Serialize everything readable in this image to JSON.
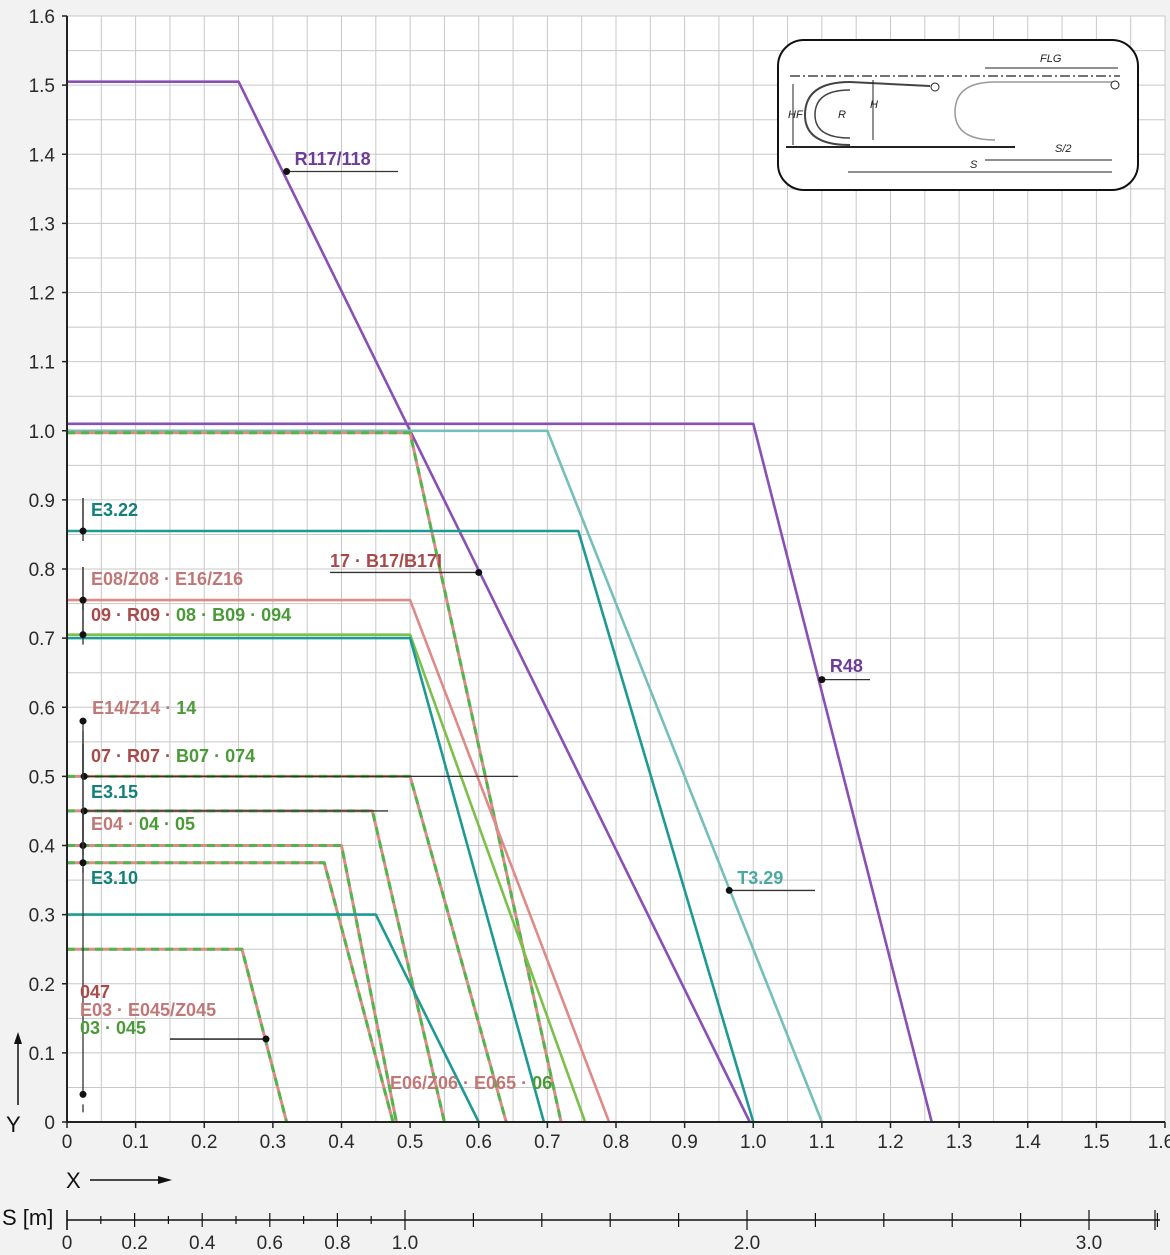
{
  "chart_data": {
    "type": "line",
    "title": "",
    "xlabel": "X",
    "ylabel": "Y",
    "xlim": [
      0,
      1.6
    ],
    "ylim": [
      0,
      1.6
    ],
    "grid": true,
    "x_ticks": [
      "0",
      "0.1",
      "0.2",
      "0.3",
      "0.4",
      "0.5",
      "0.6",
      "0.7",
      "0.8",
      "0.9",
      "1.0",
      "1.1",
      "1.2",
      "1.3",
      "1.4",
      "1.5",
      "1.6"
    ],
    "y_ticks": [
      "0",
      "0.1",
      "0.2",
      "0.3",
      "0.4",
      "0.5",
      "0.6",
      "0.7",
      "0.8",
      "0.9",
      "1.0",
      "1.1",
      "1.2",
      "1.3",
      "1.4",
      "1.5",
      "1.6"
    ],
    "secondary_axis": {
      "label": "S [m]",
      "ticks": [
        "0",
        "0.2",
        "0.4",
        "0.6",
        "0.8",
        "1.0",
        "2.0",
        "3.0"
      ]
    },
    "series": [
      {
        "name": "R117/118",
        "color": "#8a4fb4",
        "style": "solid",
        "points": [
          [
            0,
            1.505
          ],
          [
            0.25,
            1.505
          ],
          [
            0.995,
            0
          ]
        ]
      },
      {
        "name": "R48",
        "color": "#8a4fb4",
        "style": "solid",
        "points": [
          [
            0,
            1.01
          ],
          [
            1.0,
            1.01
          ],
          [
            1.26,
            0
          ]
        ]
      },
      {
        "name": "T3.29",
        "color": "#74c0b9",
        "style": "solid",
        "points": [
          [
            0,
            1.0
          ],
          [
            0.7,
            1.0
          ],
          [
            1.1,
            0
          ]
        ]
      },
      {
        "name": "17 · B17/B17I",
        "color": "#de8a88",
        "color2": "#52b54c",
        "style": "dashed",
        "points": [
          [
            0,
            0.997
          ],
          [
            0.5,
            0.997
          ],
          [
            0.72,
            0
          ]
        ]
      },
      {
        "name": "E3.22",
        "color": "#1e9a93",
        "style": "solid",
        "points": [
          [
            0,
            0.855
          ],
          [
            0.745,
            0.855
          ],
          [
            1.0,
            0
          ]
        ]
      },
      {
        "name": "E08/Z08 · E16/Z16",
        "color": "#de8a88",
        "style": "solid",
        "points": [
          [
            0,
            0.755
          ],
          [
            0.5,
            0.755
          ],
          [
            0.79,
            0
          ]
        ]
      },
      {
        "name": "09 · R09 · 08 · B09 · 094",
        "color": "#7cbf4a",
        "style": "solid",
        "points": [
          [
            0,
            0.705
          ],
          [
            0.5,
            0.705
          ],
          [
            0.755,
            0
          ]
        ]
      },
      {
        "name": "E3.15",
        "color": "#1e9a93",
        "style": "solid",
        "points": [
          [
            0,
            0.7
          ],
          [
            0.5,
            0.7
          ],
          [
            0.695,
            0
          ]
        ]
      },
      {
        "name": "E14/Z14 · 14",
        "color": "#de8a88",
        "color2": "#52b54c",
        "style": "dashed",
        "points": [
          [
            0,
            0.5
          ],
          [
            0.5,
            0.5
          ],
          [
            0.64,
            0
          ]
        ]
      },
      {
        "name": "E06/Z06 · E065 · 06",
        "color": "#de8a88",
        "color2": "#52b54c",
        "style": "dashed",
        "points": [
          [
            0,
            0.45
          ],
          [
            0.445,
            0.45
          ],
          [
            0.55,
            0
          ]
        ]
      },
      {
        "name": "07 · R07 · B07 · 074",
        "color": "#de8a88",
        "color2": "#52b54c",
        "style": "dashed",
        "points": [
          [
            0,
            0.4
          ],
          [
            0.4,
            0.4
          ],
          [
            0.48,
            0
          ]
        ]
      },
      {
        "name": "E04 · 04 · 05",
        "color": "#de8a88",
        "color2": "#52b54c",
        "style": "dashed",
        "points": [
          [
            0,
            0.375
          ],
          [
            0.375,
            0.375
          ],
          [
            0.475,
            0
          ]
        ]
      },
      {
        "name": "E3.10",
        "color": "#1e9a93",
        "style": "solid",
        "points": [
          [
            0,
            0.3
          ],
          [
            0.45,
            0.3
          ],
          [
            0.6,
            0
          ]
        ]
      },
      {
        "name": "047 / E03 · E045/Z045 / 03 · 045",
        "color": "#de8a88",
        "color2": "#52b54c",
        "style": "dashed",
        "points": [
          [
            0,
            0.25
          ],
          [
            0.255,
            0.25
          ],
          [
            0.32,
            0
          ]
        ]
      }
    ],
    "labels": [
      {
        "parts": [
          {
            "text": "R117/118",
            "color": "#6e3d97"
          }
        ],
        "at": [
          0.32,
          1.375
        ]
      },
      {
        "parts": [
          {
            "text": "R48",
            "color": "#6e3d97"
          }
        ],
        "at": [
          1.1,
          0.64
        ]
      },
      {
        "parts": [
          {
            "text": "T3.29",
            "color": "#4aa9a3"
          }
        ],
        "at": [
          0.965,
          0.335
        ]
      },
      {
        "parts": [
          {
            "text": "17 · B17/B17I",
            "color": "#a84a4a"
          }
        ],
        "at": [
          0.6,
          0.795
        ]
      },
      {
        "parts": [
          {
            "text": "E3.15",
            "color": "#14807a"
          }
        ],
        "at": [
          0.535,
          0.58
        ]
      },
      {
        "parts": [
          {
            "text": "E3.10",
            "color": "#14807a"
          }
        ],
        "at": [
          0.58,
          0.04
        ]
      },
      {
        "parts": [
          {
            "text": "E3.22",
            "color": "#14807a"
          }
        ],
        "at": [
          0.025,
          0.855
        ]
      },
      {
        "parts": [
          {
            "text": "E08/Z08 · E16/Z16",
            "color": "#c07877"
          }
        ],
        "at": [
          0.025,
          0.755
        ]
      },
      {
        "parts": [
          {
            "text": "09 · R09 · ",
            "color": "#a84a4a"
          },
          {
            "text": "08 · B09 · 094",
            "color": "#4a9a38"
          }
        ],
        "at": [
          0.025,
          0.705
        ]
      },
      {
        "parts": [
          {
            "text": "E14/Z14 · ",
            "color": "#c07877"
          },
          {
            "text": "14",
            "color": "#4a9a38"
          }
        ],
        "at": [
          0.025,
          0.5
        ]
      },
      {
        "parts": [
          {
            "text": "E06/Z06 · E065 · ",
            "color": "#c07877"
          },
          {
            "text": "06",
            "color": "#4a9a38"
          }
        ],
        "at": [
          0.025,
          0.45
        ]
      },
      {
        "parts": [
          {
            "text": "07 · R07 · ",
            "color": "#a84a4a"
          },
          {
            "text": "B07 · 074",
            "color": "#4a9a38"
          }
        ],
        "at": [
          0.025,
          0.4
        ]
      },
      {
        "parts": [
          {
            "text": "E04 · ",
            "color": "#c07877"
          },
          {
            "text": "04 · 05",
            "color": "#4a9a38"
          }
        ],
        "at": [
          0.025,
          0.375
        ]
      },
      {
        "parts": [
          {
            "text": "047",
            "color": "#a84a4a"
          }
        ],
        "at": [
          0.29,
          0.12
        ]
      },
      {
        "parts": [
          {
            "text": "E03 · E045/Z045",
            "color": "#c07877"
          }
        ],
        "at": [
          0.29,
          0.12
        ]
      },
      {
        "parts": [
          {
            "text": "03 · 045",
            "color": "#4a9a38"
          }
        ],
        "at": [
          0.29,
          0.12
        ]
      }
    ],
    "inset": {
      "labels": [
        "FLG",
        "R",
        "H",
        "HF",
        "S/2",
        "S"
      ]
    }
  }
}
